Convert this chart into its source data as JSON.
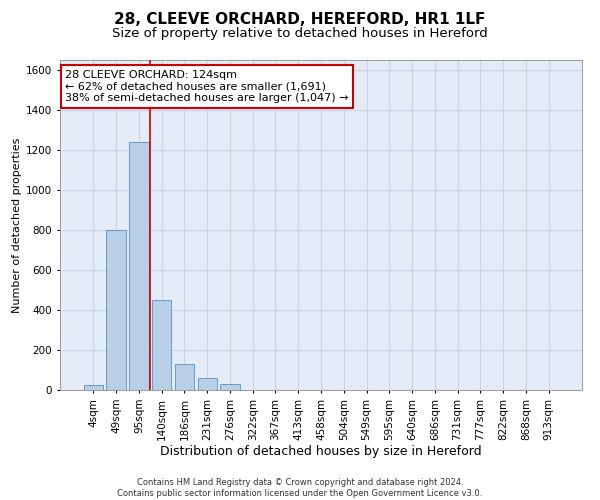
{
  "title": "28, CLEEVE ORCHARD, HEREFORD, HR1 1LF",
  "subtitle": "Size of property relative to detached houses in Hereford",
  "xlabel": "Distribution of detached houses by size in Hereford",
  "ylabel": "Number of detached properties",
  "footer_line1": "Contains HM Land Registry data © Crown copyright and database right 2024.",
  "footer_line2": "Contains public sector information licensed under the Open Government Licence v3.0.",
  "categories": [
    "4sqm",
    "49sqm",
    "95sqm",
    "140sqm",
    "186sqm",
    "231sqm",
    "276sqm",
    "322sqm",
    "367sqm",
    "413sqm",
    "458sqm",
    "504sqm",
    "549sqm",
    "595sqm",
    "640sqm",
    "686sqm",
    "731sqm",
    "777sqm",
    "822sqm",
    "868sqm",
    "913sqm"
  ],
  "values": [
    25,
    800,
    1240,
    450,
    130,
    60,
    30,
    0,
    0,
    0,
    0,
    0,
    0,
    0,
    0,
    0,
    0,
    0,
    0,
    0,
    0
  ],
  "bar_color": "#b8cfe8",
  "bar_edge_color": "#5a8fc0",
  "property_line_x": 2.5,
  "annotation_line1": "28 CLEEVE ORCHARD: 124sqm",
  "annotation_line2": "← 62% of detached houses are smaller (1,691)",
  "annotation_line3": "38% of semi-detached houses are larger (1,047) →",
  "annotation_box_color": "#ffffff",
  "annotation_box_edge_color": "#cc0000",
  "red_line_color": "#cc0000",
  "ylim": [
    0,
    1650
  ],
  "yticks": [
    0,
    200,
    400,
    600,
    800,
    1000,
    1200,
    1400,
    1600
  ],
  "grid_color": "#c8d4e8",
  "background_color": "#e4ecf7",
  "title_fontsize": 11,
  "subtitle_fontsize": 9.5,
  "xlabel_fontsize": 9,
  "ylabel_fontsize": 8,
  "tick_fontsize": 7.5,
  "annotation_fontsize": 8,
  "footer_fontsize": 6
}
